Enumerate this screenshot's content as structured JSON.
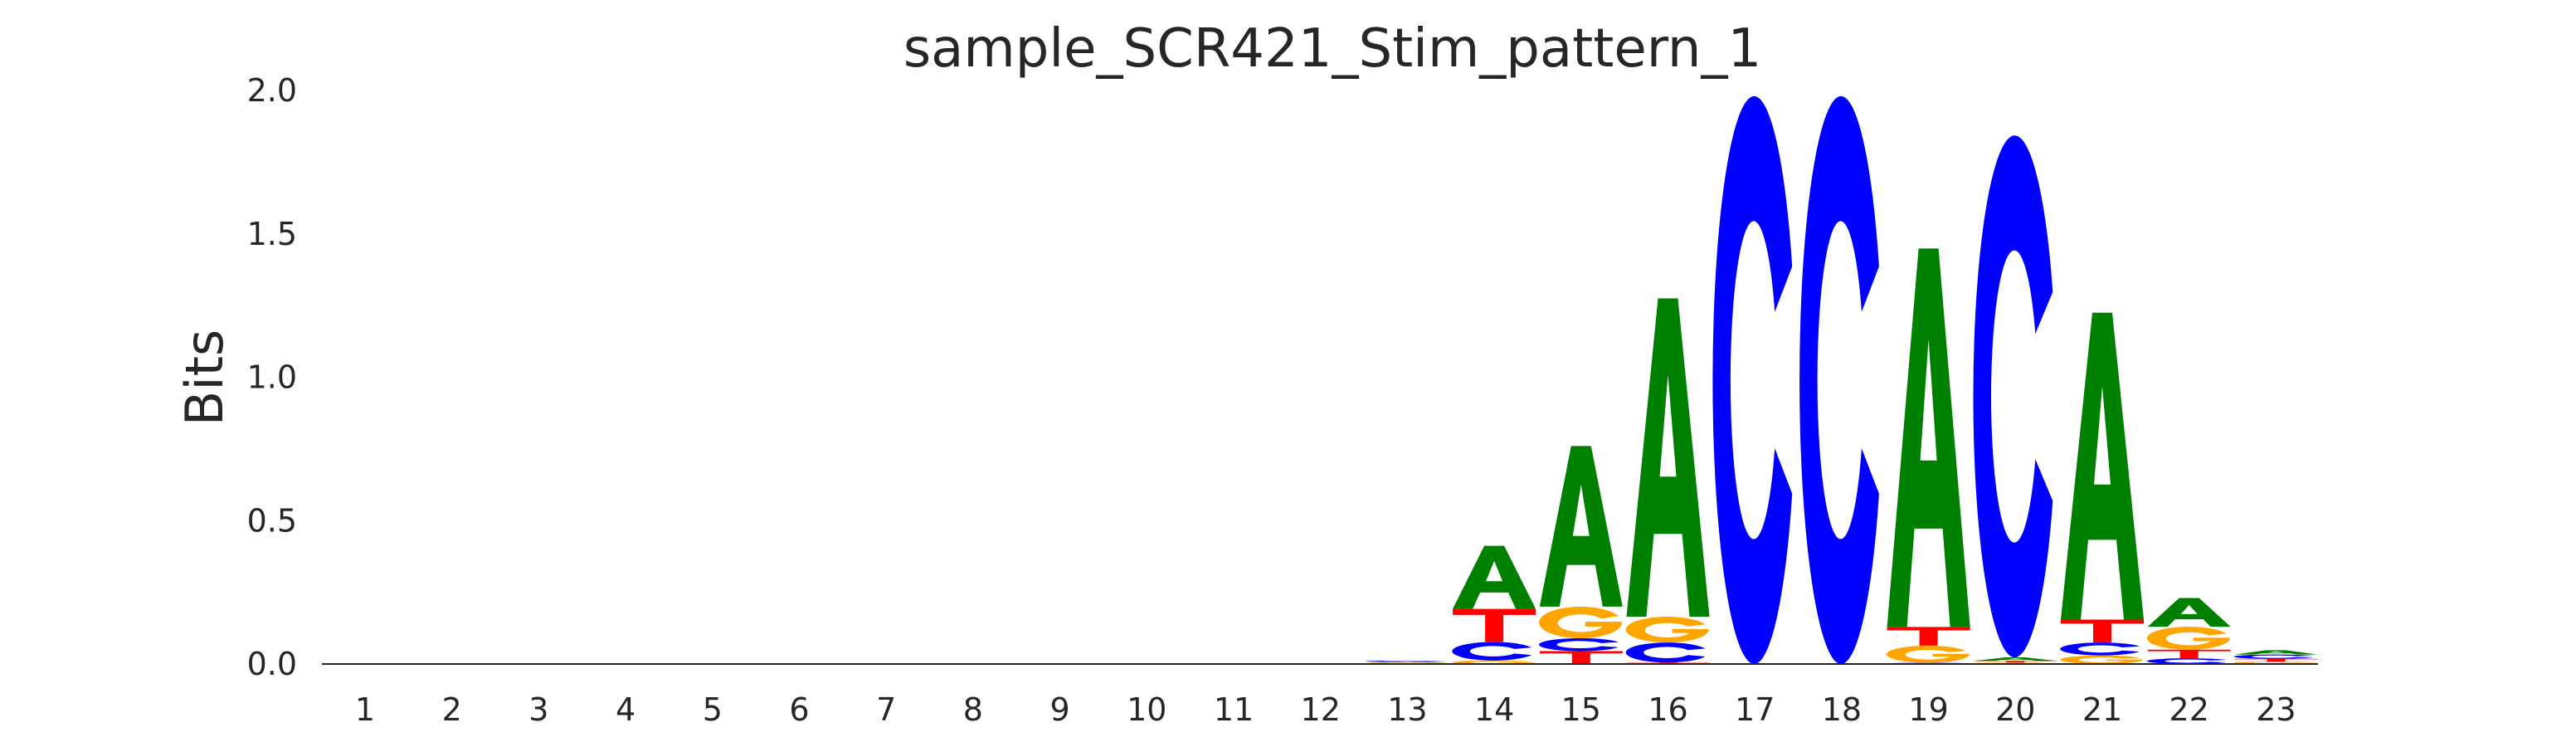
{
  "chart_data": {
    "type": "sequence-logo",
    "title": "sample_SCR421_Stim_pattern_1",
    "xlabel": "",
    "ylabel": "Bits",
    "ylim": [
      0,
      2.0
    ],
    "yticks": [
      "0.0",
      "0.5",
      "1.0",
      "1.5",
      "2.0"
    ],
    "positions": [
      "1",
      "2",
      "3",
      "4",
      "5",
      "6",
      "7",
      "8",
      "9",
      "10",
      "11",
      "12",
      "13",
      "14",
      "15",
      "16",
      "17",
      "18",
      "19",
      "20",
      "21",
      "22",
      "23"
    ],
    "colors": {
      "A": "#008000",
      "C": "#0000ff",
      "G": "#ffa500",
      "T": "#ff0000"
    },
    "stacks_bottom_to_top": [
      [],
      [],
      [],
      [],
      [],
      [],
      [],
      [],
      [],
      [],
      [],
      [],
      [
        [
          "T",
          0.002
        ],
        [
          "G",
          0.003
        ],
        [
          "A",
          0.003
        ],
        [
          "C",
          0.004
        ]
      ],
      [
        [
          "G",
          0.012
        ],
        [
          "C",
          0.065
        ],
        [
          "T",
          0.115
        ],
        [
          "A",
          0.22
        ]
      ],
      [
        [
          "T",
          0.045
        ],
        [
          "C",
          0.045
        ],
        [
          "G",
          0.11
        ],
        [
          "A",
          0.56
        ]
      ],
      [
        [
          "T",
          0.005
        ],
        [
          "C",
          0.07
        ],
        [
          "G",
          0.09
        ],
        [
          "A",
          1.11
        ]
      ],
      [
        [
          "C",
          1.98
        ]
      ],
      [
        [
          "C",
          1.98
        ]
      ],
      [
        [
          "C",
          0.004
        ],
        [
          "G",
          0.06
        ],
        [
          "T",
          0.065
        ],
        [
          "A",
          1.32
        ]
      ],
      [
        [
          "G",
          0.005
        ],
        [
          "T",
          0.006
        ],
        [
          "A",
          0.012
        ],
        [
          "C",
          1.82
        ]
      ],
      [
        [
          "G",
          0.03
        ],
        [
          "C",
          0.045
        ],
        [
          "T",
          0.08
        ],
        [
          "A",
          1.07
        ]
      ],
      [
        [
          "C",
          0.02
        ],
        [
          "T",
          0.03
        ],
        [
          "G",
          0.08
        ],
        [
          "A",
          0.1
        ]
      ],
      [
        [
          "G",
          0.008
        ],
        [
          "T",
          0.01
        ],
        [
          "C",
          0.015
        ],
        [
          "A",
          0.015
        ]
      ]
    ]
  }
}
